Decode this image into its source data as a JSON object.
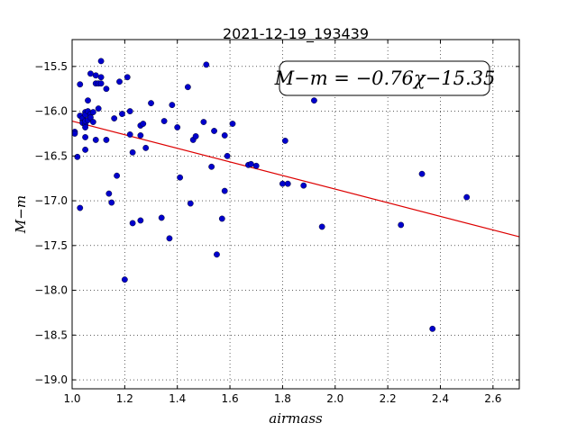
{
  "chart_data": {
    "type": "scatter",
    "title": "2021-12-19_193439",
    "xlabel": "airmass",
    "ylabel": "M−m",
    "xlim": [
      1.0,
      2.7
    ],
    "ylim": [
      -19.1,
      -15.2
    ],
    "y_inverted": true,
    "x_ticks": [
      "1.0",
      "1.2",
      "1.4",
      "1.6",
      "1.8",
      "2.0",
      "2.2",
      "2.4",
      "2.6"
    ],
    "y_ticks": [
      "−15.5",
      "−16.0",
      "−16.5",
      "−17.0",
      "−17.5",
      "−18.0",
      "−18.5",
      "−19.0"
    ],
    "grid": true,
    "annotation": "M−m = −0.76χ−15.35",
    "fit_line": {
      "slope": -0.76,
      "intercept": -15.35,
      "color": "#dd0000"
    },
    "point_color": "#0000cc",
    "points": [
      [
        1.01,
        -16.23
      ],
      [
        1.01,
        -16.25
      ],
      [
        1.02,
        -16.51
      ],
      [
        1.03,
        -17.08
      ],
      [
        1.03,
        -15.7
      ],
      [
        1.03,
        -16.05
      ],
      [
        1.04,
        -16.1
      ],
      [
        1.04,
        -16.08
      ],
      [
        1.04,
        -16.13
      ],
      [
        1.05,
        -16.15
      ],
      [
        1.05,
        -16.01
      ],
      [
        1.05,
        -16.04
      ],
      [
        1.05,
        -16.29
      ],
      [
        1.05,
        -16.43
      ],
      [
        1.05,
        -16.18
      ],
      [
        1.05,
        -16.11
      ],
      [
        1.06,
        -15.88
      ],
      [
        1.06,
        -16.0
      ],
      [
        1.06,
        -16.1
      ],
      [
        1.07,
        -15.58
      ],
      [
        1.07,
        -16.03
      ],
      [
        1.07,
        -16.07
      ],
      [
        1.08,
        -16.01
      ],
      [
        1.08,
        -16.12
      ],
      [
        1.09,
        -15.6
      ],
      [
        1.09,
        -15.69
      ],
      [
        1.09,
        -16.32
      ],
      [
        1.1,
        -15.97
      ],
      [
        1.1,
        -15.69
      ],
      [
        1.11,
        -15.44
      ],
      [
        1.11,
        -15.62
      ],
      [
        1.11,
        -15.69
      ],
      [
        1.13,
        -16.32
      ],
      [
        1.13,
        -15.75
      ],
      [
        1.14,
        -16.92
      ],
      [
        1.15,
        -17.02
      ],
      [
        1.16,
        -16.08
      ],
      [
        1.17,
        -16.72
      ],
      [
        1.18,
        -15.67
      ],
      [
        1.19,
        -16.03
      ],
      [
        1.2,
        -17.88
      ],
      [
        1.21,
        -15.62
      ],
      [
        1.22,
        -16.0
      ],
      [
        1.22,
        -16.26
      ],
      [
        1.23,
        -16.46
      ],
      [
        1.23,
        -17.25
      ],
      [
        1.26,
        -16.16
      ],
      [
        1.26,
        -16.27
      ],
      [
        1.26,
        -17.22
      ],
      [
        1.27,
        -16.14
      ],
      [
        1.28,
        -16.41
      ],
      [
        1.3,
        -15.91
      ],
      [
        1.34,
        -17.19
      ],
      [
        1.35,
        -16.11
      ],
      [
        1.37,
        -17.42
      ],
      [
        1.38,
        -15.93
      ],
      [
        1.4,
        -16.18
      ],
      [
        1.41,
        -16.74
      ],
      [
        1.44,
        -15.73
      ],
      [
        1.45,
        -17.03
      ],
      [
        1.46,
        -16.32
      ],
      [
        1.47,
        -16.28
      ],
      [
        1.5,
        -16.12
      ],
      [
        1.51,
        -15.48
      ],
      [
        1.53,
        -16.62
      ],
      [
        1.54,
        -16.22
      ],
      [
        1.55,
        -17.6
      ],
      [
        1.57,
        -17.2
      ],
      [
        1.58,
        -16.89
      ],
      [
        1.58,
        -16.27
      ],
      [
        1.59,
        -16.5
      ],
      [
        1.61,
        -16.14
      ],
      [
        1.67,
        -16.6
      ],
      [
        1.68,
        -16.59
      ],
      [
        1.7,
        -16.61
      ],
      [
        1.8,
        -16.81
      ],
      [
        1.81,
        -16.33
      ],
      [
        1.82,
        -16.81
      ],
      [
        1.88,
        -16.83
      ],
      [
        1.92,
        -15.88
      ],
      [
        1.95,
        -17.29
      ],
      [
        2.25,
        -17.27
      ],
      [
        2.33,
        -16.7
      ],
      [
        2.37,
        -18.43
      ],
      [
        2.5,
        -16.96
      ]
    ]
  }
}
